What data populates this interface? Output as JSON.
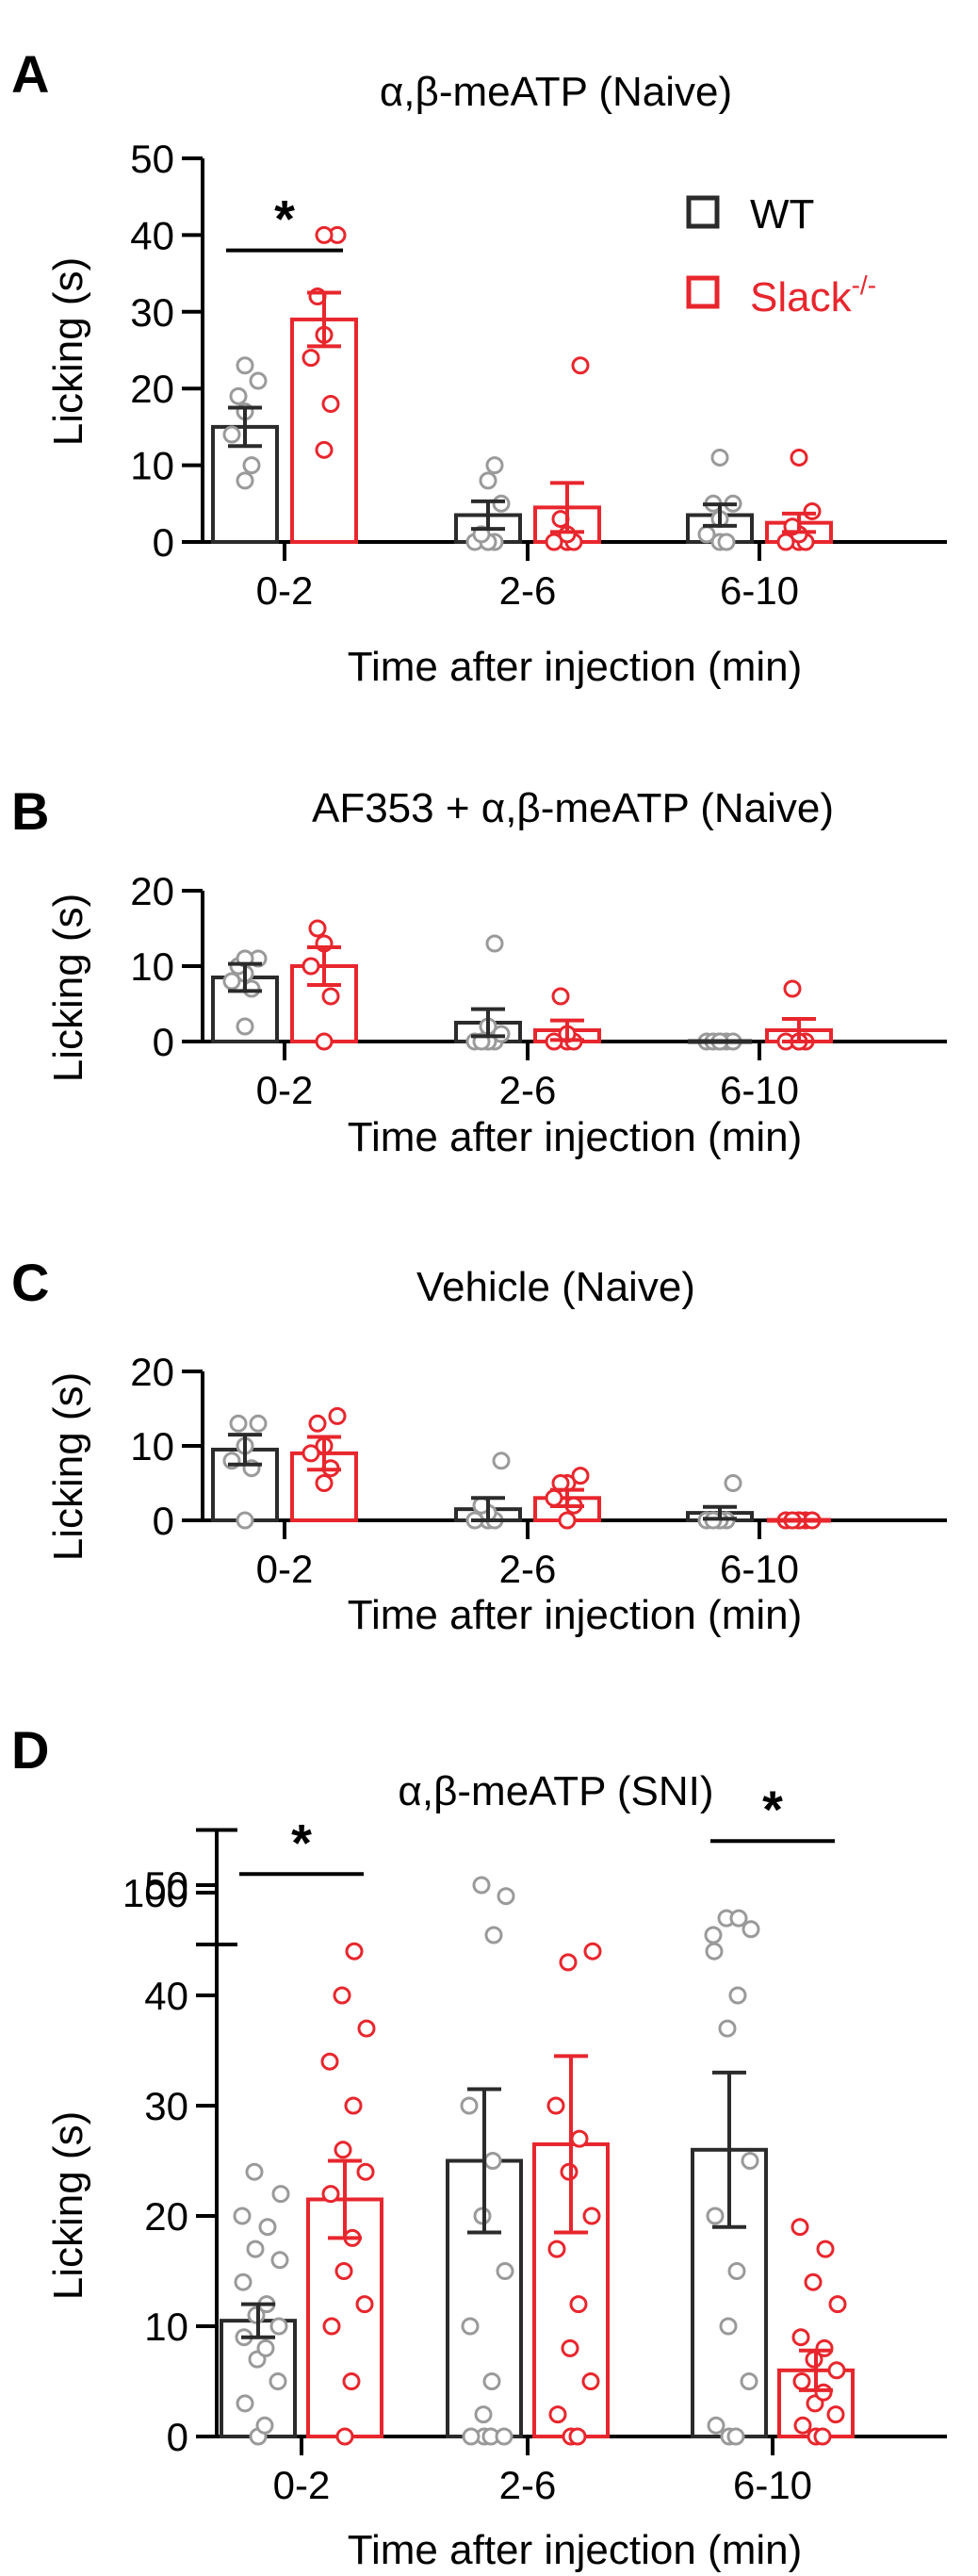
{
  "colors": {
    "wt": "#2b2b2b",
    "ko": "#e8262d",
    "wt_points": "#9a9a9a",
    "ko_points": "#e8262d",
    "axis": "#000000"
  },
  "legend": {
    "wt": "WT",
    "ko_base": "Slack",
    "ko_sup": "-/-"
  },
  "chart_data": [
    {
      "panel": "A",
      "type": "bar",
      "title": "α,β-meATP (Naive)",
      "xlabel": "Time after injection (min)",
      "ylabel": "Licking (s)",
      "ylim": [
        0,
        50
      ],
      "yticks": [
        "0",
        "10",
        "20",
        "30",
        "40",
        "50"
      ],
      "categories": [
        "0-2",
        "2-6",
        "6-10"
      ],
      "series": [
        {
          "name": "WT",
          "means": [
            15,
            3.5,
            3.5
          ],
          "sem": [
            2.5,
            1.8,
            1.4
          ],
          "points": [
            [
              8,
              10,
              14,
              17,
              19,
              21,
              23
            ],
            [
              0,
              0,
              0,
              0,
              1,
              5,
              8,
              10
            ],
            [
              0,
              0,
              1,
              3,
              5,
              5,
              11
            ]
          ]
        },
        {
          "name": "Slack-/-",
          "means": [
            29,
            4.5,
            2.5
          ],
          "sem": [
            3.5,
            3.2,
            1.2
          ],
          "points": [
            [
              12,
              18,
              24,
              27,
              32,
              40,
              40
            ],
            [
              0,
              0,
              0,
              1,
              3,
              23
            ],
            [
              0,
              0,
              0,
              1,
              2,
              4,
              11
            ]
          ]
        }
      ],
      "significance": [
        {
          "category": "0-2",
          "label": "*",
          "y": 38
        }
      ]
    },
    {
      "panel": "B",
      "type": "bar",
      "title": "AF353 + α,β-meATP (Naive)",
      "xlabel": "Time after injection (min)",
      "ylabel": "Licking (s)",
      "ylim": [
        0,
        20
      ],
      "yticks": [
        "0",
        "10",
        "20"
      ],
      "categories": [
        "0-2",
        "2-6",
        "6-10"
      ],
      "series": [
        {
          "name": "WT",
          "means": [
            8.5,
            2.5,
            0
          ],
          "sem": [
            1.8,
            1.8,
            0
          ],
          "points": [
            [
              2,
              7,
              8,
              9,
              10,
              11,
              11
            ],
            [
              0,
              0,
              0,
              0,
              0,
              1,
              2,
              13
            ],
            [
              0,
              0,
              0,
              0,
              0,
              0,
              0
            ]
          ]
        },
        {
          "name": "Slack-/-",
          "means": [
            10,
            1.5,
            1.5
          ],
          "sem": [
            2.5,
            1.3,
            1.5
          ],
          "points": [
            [
              0,
              6,
              10,
              13,
              15
            ],
            [
              0,
              0,
              0,
              1,
              6
            ],
            [
              0,
              0,
              0,
              0,
              7
            ]
          ]
        }
      ],
      "significance": []
    },
    {
      "panel": "C",
      "type": "bar",
      "title": "Vehicle (Naive)",
      "xlabel": "Time after injection (min)",
      "ylabel": "Licking (s)",
      "ylim": [
        0,
        20
      ],
      "yticks": [
        "0",
        "10",
        "20"
      ],
      "categories": [
        "0-2",
        "2-6",
        "6-10"
      ],
      "series": [
        {
          "name": "WT",
          "means": [
            9.5,
            1.5,
            1
          ],
          "sem": [
            2,
            1.5,
            0.8
          ],
          "points": [
            [
              0,
              7,
              8,
              10,
              13,
              13
            ],
            [
              0,
              0,
              0,
              1,
              2,
              8
            ],
            [
              0,
              0,
              0,
              0,
              0,
              5
            ]
          ]
        },
        {
          "name": "Slack-/-",
          "means": [
            9,
            3,
            0
          ],
          "sem": [
            2.2,
            1.1,
            0
          ],
          "points": [
            [
              5,
              7,
              9,
              10,
              13,
              14
            ],
            [
              0,
              2,
              3,
              5,
              5,
              6
            ],
            [
              0,
              0,
              0,
              0,
              0,
              0
            ]
          ]
        }
      ],
      "significance": []
    },
    {
      "panel": "D",
      "type": "bar",
      "title": "α,β-meATP (SNI)",
      "xlabel": "Time after injection (min)",
      "ylabel": "Licking (s)",
      "ylim": [
        0,
        55
      ],
      "yticks": [
        "0",
        "10",
        "20",
        "30",
        "40",
        "50"
      ],
      "ybreak": {
        "from": 55,
        "to": 100,
        "top_tick": "100"
      },
      "categories": [
        "0-2",
        "2-6",
        "6-10"
      ],
      "series": [
        {
          "name": "WT",
          "means": [
            10.5,
            25,
            26
          ],
          "sem": [
            1.5,
            6.5,
            7
          ],
          "points": [
            [
              0,
              1,
              3,
              5,
              7,
              8,
              9,
              10,
              11,
              12,
              14,
              16,
              17,
              19,
              20,
              22,
              24
            ],
            [
              0,
              0,
              0,
              0,
              2,
              5,
              10,
              15,
              20,
              25,
              30,
              49,
              50,
              95
            ],
            [
              0,
              0,
              1,
              5,
              10,
              15,
              20,
              25,
              37,
              40,
              44,
              46,
              47,
              47,
              56
            ]
          ]
        },
        {
          "name": "Slack-/-",
          "means": [
            21.5,
            26.5,
            6
          ],
          "sem": [
            3.5,
            8,
            1.8
          ],
          "points": [
            [
              0,
              5,
              10,
              12,
              15,
              18,
              22,
              24,
              26,
              30,
              34,
              37,
              40,
              44
            ],
            [
              0,
              0,
              2,
              5,
              8,
              12,
              17,
              20,
              24,
              27,
              30,
              44,
              43
            ],
            [
              0,
              0,
              1,
              2,
              3,
              4,
              5,
              6,
              7,
              8,
              9,
              12,
              14,
              17,
              19
            ]
          ]
        }
      ],
      "significance": [
        {
          "category": "0-2",
          "label": "*",
          "y": 51
        },
        {
          "category": "6-10",
          "label": "*",
          "y": 54
        }
      ]
    }
  ]
}
